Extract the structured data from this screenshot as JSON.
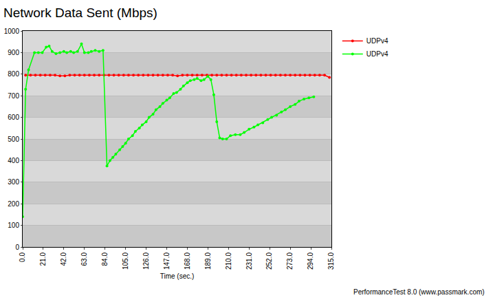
{
  "chart_data": {
    "type": "line",
    "title": "Network Data Sent (Mbps)",
    "x_label": "Time (sec.)",
    "annotations": [
      "PerformanceTest 8.0 (www.passmark.com)"
    ],
    "xlim": [
      0,
      315
    ],
    "xticks": [
      {
        "value": 0,
        "label": "0.0"
      },
      {
        "value": 21,
        "label": "21.0"
      },
      {
        "value": 42,
        "label": "42.0"
      },
      {
        "value": 63,
        "label": "63.0"
      },
      {
        "value": 84,
        "label": "84.0"
      },
      {
        "value": 105,
        "label": "105.0"
      },
      {
        "value": 126,
        "label": "126.0"
      },
      {
        "value": 147,
        "label": "147.0"
      },
      {
        "value": 168,
        "label": "168.0"
      },
      {
        "value": 189,
        "label": "189.0"
      },
      {
        "value": 210,
        "label": "210.0"
      },
      {
        "value": 231,
        "label": "231.0"
      },
      {
        "value": 252,
        "label": "252.0"
      },
      {
        "value": 273,
        "label": "273.0"
      },
      {
        "value": 294,
        "label": "294.0"
      },
      {
        "value": 315,
        "label": "315.0"
      }
    ],
    "ylim": [
      0,
      1000
    ],
    "yticks": [
      0,
      100,
      200,
      300,
      400,
      500,
      600,
      700,
      800,
      900,
      1000
    ],
    "grid": true,
    "legend": "right",
    "marker": "circle",
    "line_style": "solid",
    "series": [
      {
        "name": "UDPv4",
        "color": "#ff0000",
        "x": [
          3,
          8,
          13,
          18,
          23,
          28,
          33,
          38,
          43,
          48,
          53,
          58,
          63,
          68,
          73,
          78,
          83,
          88,
          93,
          98,
          103,
          108,
          113,
          118,
          123,
          128,
          133,
          138,
          143,
          148,
          153,
          158,
          163,
          168,
          173,
          178,
          183,
          188,
          193,
          198,
          203,
          208,
          213,
          218,
          223,
          228,
          233,
          238,
          243,
          248,
          253,
          258,
          263,
          268,
          273,
          278,
          283,
          288,
          293,
          298,
          303,
          308,
          313
        ],
        "values": [
          795,
          795,
          795,
          795,
          795,
          795,
          795,
          792,
          792,
          795,
          795,
          795,
          795,
          795,
          795,
          795,
          795,
          795,
          795,
          795,
          795,
          795,
          795,
          795,
          795,
          795,
          795,
          795,
          795,
          795,
          795,
          792,
          795,
          795,
          795,
          795,
          795,
          795,
          795,
          795,
          795,
          795,
          795,
          795,
          795,
          795,
          795,
          795,
          795,
          795,
          795,
          795,
          795,
          795,
          795,
          795,
          795,
          795,
          795,
          795,
          795,
          795,
          785
        ]
      },
      {
        "name": "UDPv4",
        "color": "#00ff00",
        "x": [
          0,
          3,
          6,
          12,
          16,
          20,
          24,
          27,
          30,
          34,
          38,
          42,
          45,
          49,
          52,
          56,
          60,
          63,
          67,
          70,
          74,
          78,
          82,
          86,
          89,
          92,
          95,
          99,
          102,
          105,
          108,
          112,
          115,
          119,
          122,
          126,
          129,
          133,
          136,
          140,
          143,
          147,
          150,
          154,
          157,
          161,
          164,
          168,
          171,
          175,
          178,
          182,
          185,
          189,
          192,
          195,
          198,
          201,
          204,
          208,
          212,
          217,
          222,
          226,
          231,
          236,
          240,
          245,
          250,
          254,
          259,
          264,
          268,
          273,
          278,
          282,
          287,
          292,
          297
        ],
        "values": [
          140,
          730,
          820,
          900,
          900,
          900,
          925,
          930,
          905,
          895,
          900,
          905,
          900,
          905,
          900,
          905,
          940,
          900,
          900,
          905,
          910,
          905,
          910,
          375,
          400,
          415,
          430,
          450,
          465,
          480,
          500,
          515,
          535,
          550,
          565,
          580,
          600,
          615,
          635,
          650,
          665,
          680,
          690,
          710,
          715,
          730,
          745,
          760,
          770,
          775,
          780,
          770,
          775,
          790,
          775,
          705,
          580,
          505,
          500,
          500,
          515,
          520,
          520,
          530,
          545,
          555,
          565,
          575,
          590,
          600,
          610,
          625,
          635,
          650,
          660,
          675,
          685,
          690,
          695
        ]
      }
    ]
  }
}
